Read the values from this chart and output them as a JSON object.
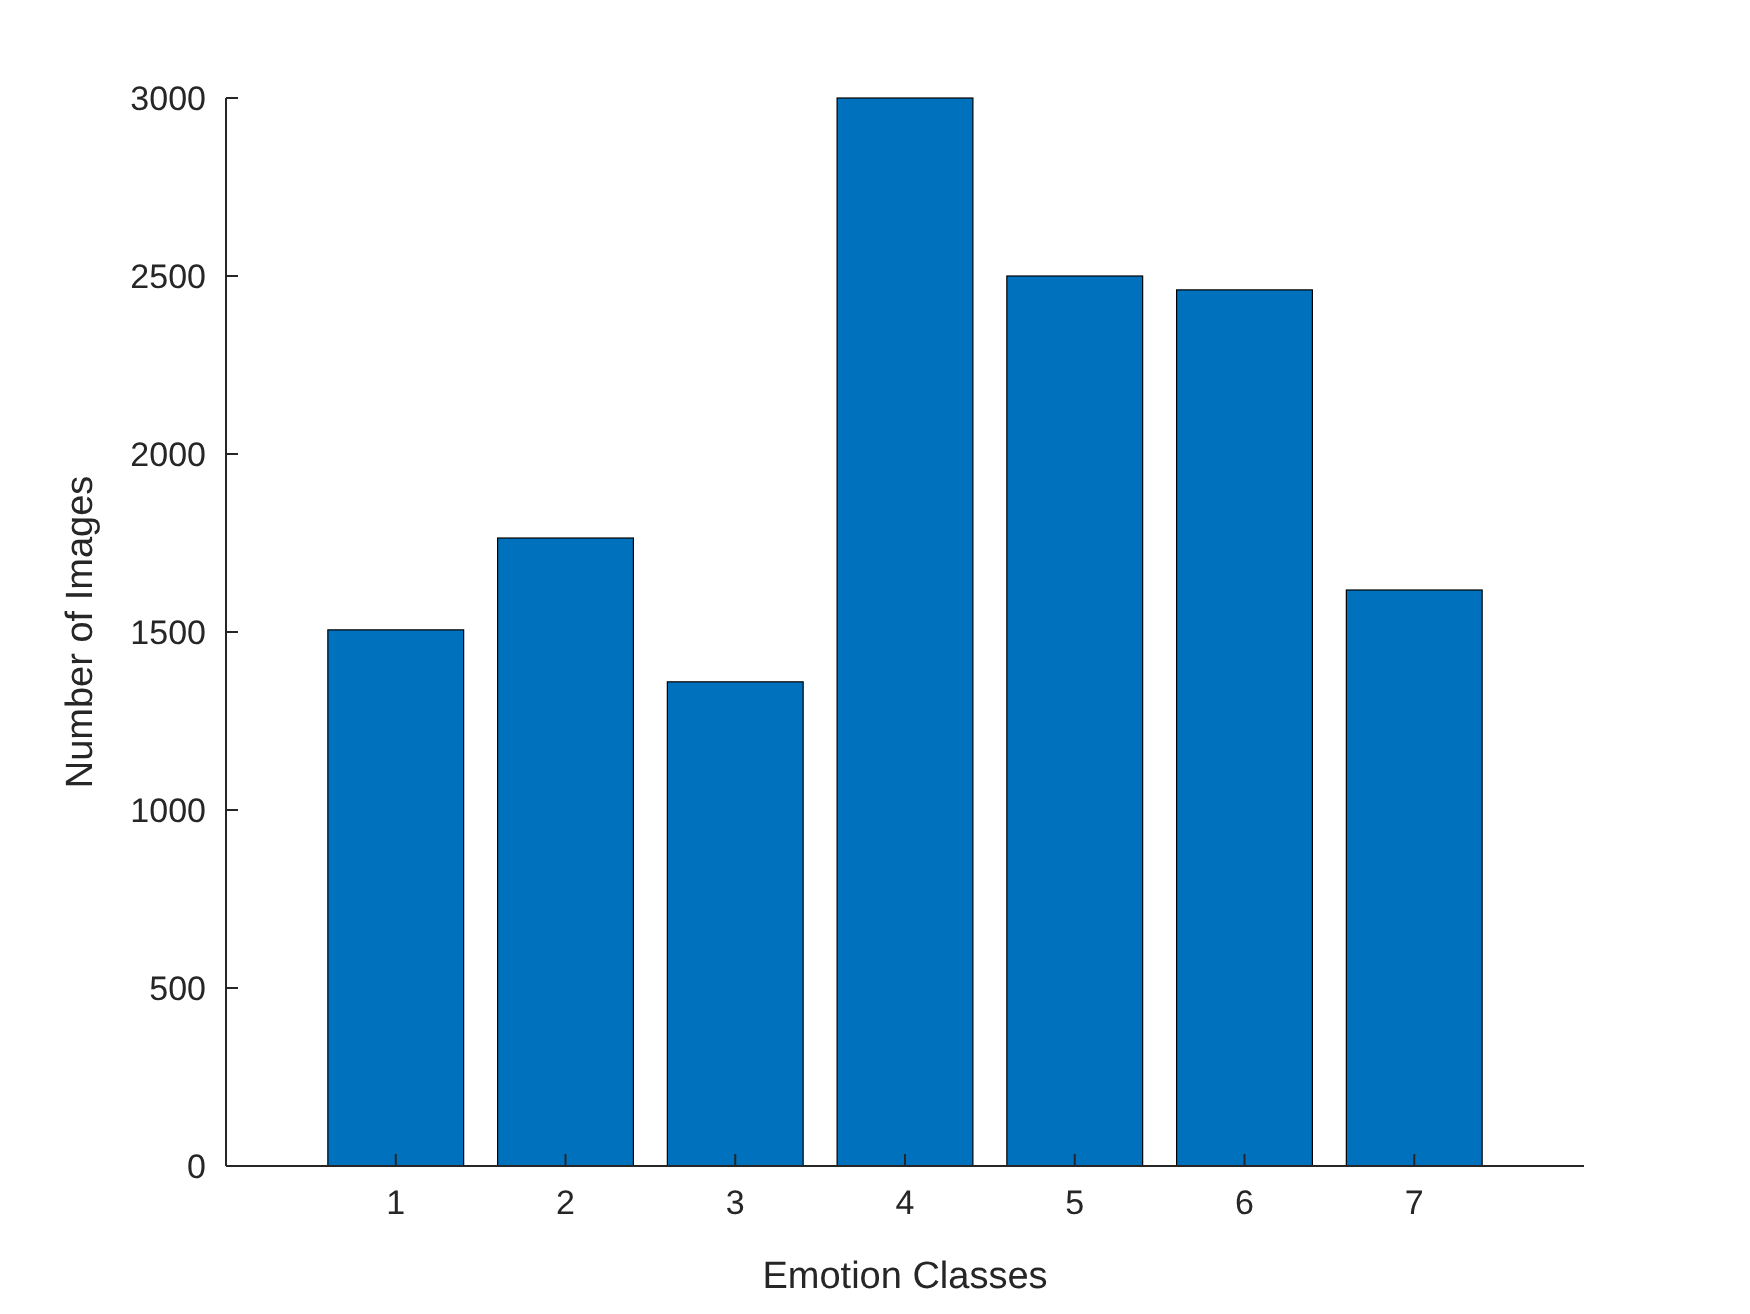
{
  "chart_data": {
    "type": "bar",
    "xlabel": "Emotion Classes",
    "ylabel": "Number of Images",
    "categories": [
      "1",
      "2",
      "3",
      "4",
      "5",
      "6",
      "7"
    ],
    "values": [
      1506,
      1764,
      1360,
      3000,
      2500,
      2461,
      1618
    ],
    "color": "#0072bd",
    "ylim": [
      0,
      3000
    ],
    "yticks": [
      0,
      500,
      1000,
      1500,
      2000,
      2500,
      3000
    ],
    "grid": false
  }
}
